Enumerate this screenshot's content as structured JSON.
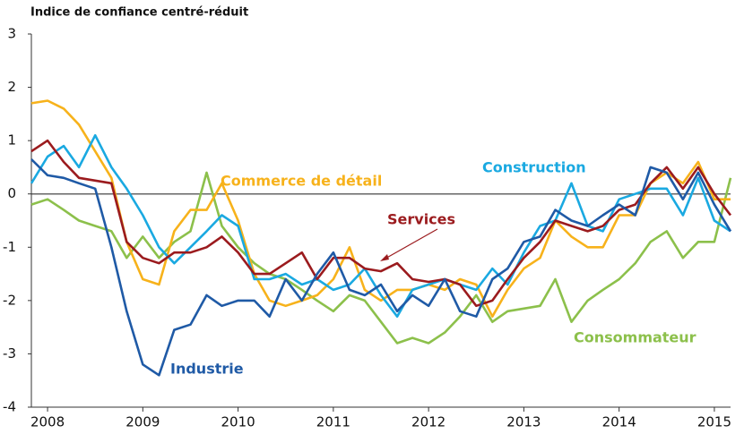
{
  "chart_data": {
    "type": "line",
    "title": "Indice de confiance centré-réduit",
    "x": [
      2007.83,
      2008,
      2008.17,
      2008.33,
      2008.5,
      2008.67,
      2008.83,
      2009,
      2009.17,
      2009.33,
      2009.5,
      2009.67,
      2009.83,
      2010,
      2010.17,
      2010.33,
      2010.5,
      2010.67,
      2010.83,
      2011,
      2011.17,
      2011.33,
      2011.5,
      2011.67,
      2011.83,
      2012,
      2012.17,
      2012.33,
      2012.5,
      2012.67,
      2012.83,
      2013,
      2013.17,
      2013.33,
      2013.5,
      2013.67,
      2013.83,
      2014,
      2014.17,
      2014.33,
      2014.5,
      2014.67,
      2014.83,
      2015,
      2015.17
    ],
    "series": [
      {
        "name": "Consommateur",
        "color": "#8cc04b",
        "values": [
          -0.2,
          -0.1,
          -0.3,
          -0.5,
          -0.6,
          -0.7,
          -1.2,
          -0.8,
          -1.2,
          -0.9,
          -0.7,
          0.4,
          -0.6,
          -1.0,
          -1.3,
          -1.5,
          -1.6,
          -1.8,
          -2.0,
          -2.2,
          -1.9,
          -2.0,
          -2.4,
          -2.8,
          -2.7,
          -2.8,
          -2.6,
          -2.3,
          -1.9,
          -2.4,
          -2.2,
          -2.15,
          -2.1,
          -1.6,
          -2.4,
          -2.0,
          -1.8,
          -1.6,
          -1.3,
          -0.9,
          -0.7,
          -1.2,
          -0.9,
          -0.9,
          0.3
        ]
      },
      {
        "name": "Commerce de détail",
        "color": "#f7b21b",
        "values": [
          1.7,
          1.75,
          1.6,
          1.3,
          0.8,
          0.3,
          -0.9,
          -1.6,
          -1.7,
          -0.7,
          -0.3,
          -0.3,
          0.2,
          -0.5,
          -1.5,
          -2.0,
          -2.1,
          -2.0,
          -1.9,
          -1.6,
          -1.0,
          -1.8,
          -2.0,
          -1.8,
          -1.8,
          -1.7,
          -1.8,
          -1.6,
          -1.7,
          -2.3,
          -1.8,
          -1.4,
          -1.2,
          -0.5,
          -0.8,
          -1.0,
          -1.0,
          -0.4,
          -0.4,
          0.2,
          0.4,
          0.2,
          0.6,
          -0.1,
          -0.1
        ]
      },
      {
        "name": "Construction",
        "color": "#1aa9e1",
        "values": [
          0.2,
          0.7,
          0.9,
          0.5,
          1.1,
          0.5,
          0.1,
          -0.4,
          -1.0,
          -1.3,
          -1.0,
          -0.7,
          -0.4,
          -0.6,
          -1.6,
          -1.6,
          -1.5,
          -1.7,
          -1.6,
          -1.8,
          -1.7,
          -1.4,
          -1.9,
          -2.3,
          -1.8,
          -1.7,
          -1.6,
          -1.7,
          -1.8,
          -1.4,
          -1.7,
          -1.1,
          -0.6,
          -0.5,
          0.2,
          -0.6,
          -0.7,
          -0.1,
          0.0,
          0.1,
          0.1,
          -0.4,
          0.3,
          -0.5,
          -0.7
        ]
      },
      {
        "name": "Services",
        "color": "#9b1b1e",
        "values": [
          0.8,
          1.0,
          0.6,
          0.3,
          0.25,
          0.2,
          -0.9,
          -1.2,
          -1.3,
          -1.1,
          -1.1,
          -1.0,
          -0.8,
          -1.1,
          -1.5,
          -1.5,
          -1.3,
          -1.1,
          -1.6,
          -1.2,
          -1.2,
          -1.4,
          -1.45,
          -1.3,
          -1.6,
          -1.65,
          -1.6,
          -1.7,
          -2.1,
          -2.0,
          -1.6,
          -1.2,
          -0.9,
          -0.5,
          -0.6,
          -0.7,
          -0.6,
          -0.3,
          -0.2,
          0.2,
          0.5,
          0.1,
          0.5,
          0.0,
          -0.4
        ]
      },
      {
        "name": "Industrie",
        "color": "#1f5aa6",
        "values": [
          0.65,
          0.35,
          0.3,
          0.2,
          0.1,
          -1.0,
          -2.2,
          -3.2,
          -3.4,
          -2.55,
          -2.45,
          -1.9,
          -2.1,
          -2.0,
          -2.0,
          -2.3,
          -1.6,
          -2.0,
          -1.5,
          -1.1,
          -1.8,
          -1.9,
          -1.7,
          -2.2,
          -1.9,
          -2.1,
          -1.6,
          -2.2,
          -2.3,
          -1.6,
          -1.4,
          -0.9,
          -0.8,
          -0.3,
          -0.5,
          -0.6,
          -0.4,
          -0.2,
          -0.4,
          0.5,
          0.4,
          -0.1,
          0.4,
          -0.2,
          -0.7
        ]
      }
    ],
    "xlim": [
      2007.83,
      2015.17
    ],
    "xticks": [
      2008,
      2009,
      2010,
      2011,
      2012,
      2013,
      2014,
      2015
    ],
    "ylim": [
      -4,
      3
    ],
    "yticks": [
      -4,
      -3,
      -2,
      -1,
      0,
      1,
      2,
      3
    ]
  }
}
